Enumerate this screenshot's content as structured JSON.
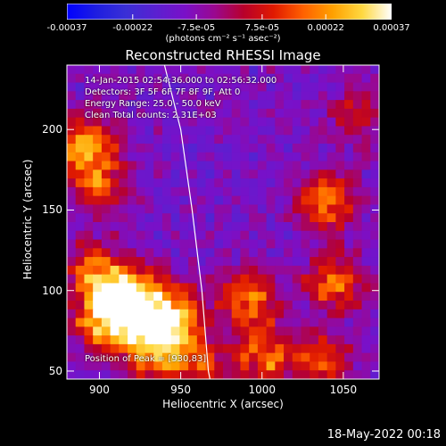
{
  "colorbar": {
    "ticks": [
      "-0.00037",
      "-0.00022",
      "-7.5e-05",
      "7.5e-05",
      "0.00022",
      "0.00037"
    ],
    "tick_values": [
      -0.00037,
      -0.00022,
      -7.5e-05,
      7.5e-05,
      0.00022,
      0.00037
    ],
    "unit": "(photons cm⁻² s⁻¹ asec⁻²)",
    "stops": [
      "#0000ff",
      "#1e1ee0",
      "#3a2fd6",
      "#5a20d0",
      "#7a10c8",
      "#9a0890",
      "#b8002a",
      "#e01a00",
      "#ff6000",
      "#ffa000",
      "#ffd840",
      "#ffffff"
    ]
  },
  "chart_data": {
    "type": "heatmap",
    "title": "Reconstructed RHESSI Image",
    "xlabel": "Heliocentric X (arcsec)",
    "ylabel": "Heliocentric Y (arcsec)",
    "xlim": [
      880,
      1072
    ],
    "ylim": [
      45,
      240
    ],
    "xticks": [
      900,
      950,
      1000,
      1050
    ],
    "yticks": [
      50,
      100,
      150,
      200
    ],
    "value_range": [
      -0.00037,
      0.00037
    ],
    "limb_curve": [
      [
        940,
        240
      ],
      [
        950,
        200
      ],
      [
        957,
        150
      ],
      [
        963,
        100
      ],
      [
        967,
        50
      ],
      [
        968,
        45
      ]
    ],
    "peak_position": [
      930,
      83
    ],
    "bright_sources": [
      {
        "x": 920,
        "y": 95,
        "level": 1.0
      },
      {
        "x": 905,
        "y": 80,
        "level": 0.95
      },
      {
        "x": 935,
        "y": 65,
        "level": 0.9
      },
      {
        "x": 898,
        "y": 110,
        "level": 0.7
      },
      {
        "x": 945,
        "y": 85,
        "level": 0.8
      },
      {
        "x": 892,
        "y": 190,
        "level": 0.75
      },
      {
        "x": 900,
        "y": 165,
        "level": 0.5
      },
      {
        "x": 990,
        "y": 95,
        "level": 0.7
      },
      {
        "x": 1000,
        "y": 60,
        "level": 0.6
      },
      {
        "x": 1040,
        "y": 155,
        "level": 0.7
      },
      {
        "x": 1045,
        "y": 105,
        "level": 0.6
      },
      {
        "x": 1035,
        "y": 55,
        "level": 0.55
      },
      {
        "x": 1060,
        "y": 210,
        "level": 0.4
      },
      {
        "x": 960,
        "y": 55,
        "level": 0.45
      }
    ]
  },
  "info": {
    "time": "14-Jan-2015 02:54:36.000 to 02:56:32.000",
    "detectors": "Detectors: 3F 5F 6F 7F 8F 9F, Att 0",
    "energy": "Energy Range: 25.0 - 50.0 keV",
    "clean": "Clean     Total counts: 2.31E+03",
    "peak": "Position of Peak = [930,83]"
  },
  "footer": {
    "date": "18-May-2022 00:18"
  }
}
